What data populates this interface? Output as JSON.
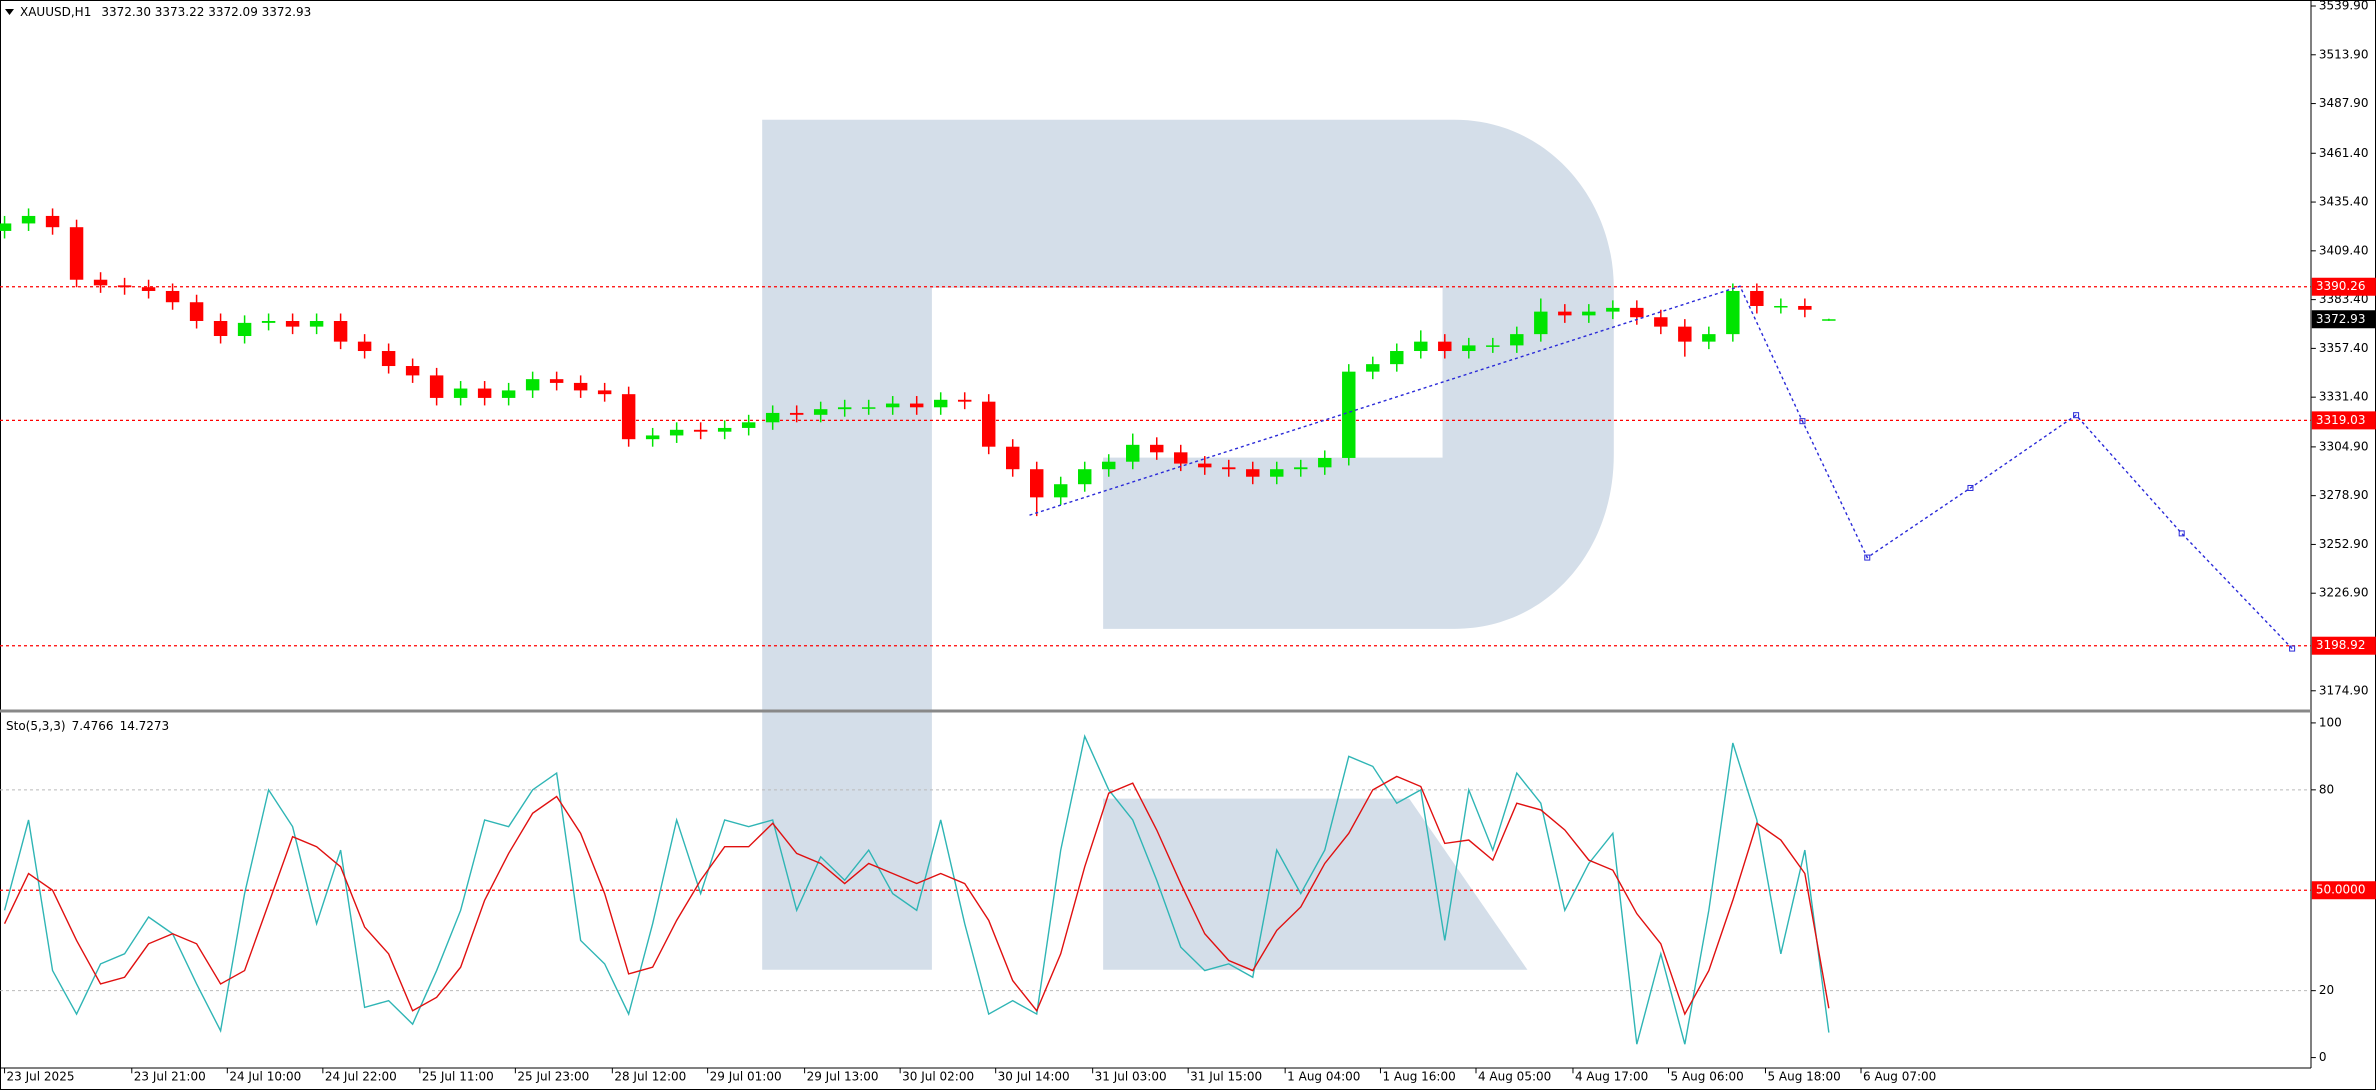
{
  "chart_data": [
    {
      "type": "candlestick",
      "symbol": "XAUUSD,H1",
      "ohlc_text": "3372.30 3373.22 3372.09 3372.93",
      "open": [
        3420,
        3424,
        3428,
        3422,
        3394,
        3391,
        3390,
        3388,
        3382,
        3372,
        3364,
        3371,
        3372,
        3369,
        3372,
        3361,
        3356,
        3348,
        3343,
        3331,
        3336,
        3331,
        3335,
        3341,
        3339,
        3335,
        3333,
        3309,
        3311,
        3314,
        3313,
        3315,
        3318,
        3323,
        3322,
        3325,
        3326,
        3326,
        3328,
        3326,
        3330,
        3329,
        3305,
        3293,
        3278,
        3285,
        3293,
        3297,
        3306,
        3302,
        3296,
        3294,
        3293,
        3289,
        3293,
        3294,
        3299,
        3345,
        3349,
        3356,
        3361,
        3356,
        3359,
        3359,
        3365,
        3377,
        3375,
        3377,
        3379,
        3374,
        3369,
        3361,
        3365,
        3388,
        3380,
        3380,
        3372.3
      ],
      "high": [
        3428,
        3432,
        3432,
        3426,
        3398,
        3395,
        3394,
        3392,
        3386,
        3376,
        3375,
        3376,
        3376,
        3376,
        3376,
        3365,
        3360,
        3352,
        3347,
        3340,
        3340,
        3339,
        3345,
        3345,
        3343,
        3339,
        3337,
        3315,
        3318,
        3318,
        3319,
        3322,
        3327,
        3327,
        3329,
        3330,
        3330,
        3332,
        3332,
        3334,
        3334,
        3333,
        3309,
        3297,
        3289,
        3297,
        3301,
        3312,
        3310,
        3306,
        3300,
        3298,
        3297,
        3297,
        3298,
        3303,
        3349,
        3353,
        3360,
        3367,
        3365,
        3363,
        3363,
        3369,
        3384,
        3381,
        3381,
        3383,
        3383,
        3378,
        3373,
        3369,
        3392,
        3392,
        3384,
        3384,
        3373.22
      ],
      "low": [
        3416,
        3420,
        3418,
        3390,
        3387,
        3386,
        3384,
        3378,
        3368,
        3360,
        3360,
        3367,
        3365,
        3365,
        3357,
        3352,
        3344,
        3339,
        3327,
        3327,
        3327,
        3327,
        3331,
        3335,
        3331,
        3329,
        3305,
        3305,
        3307,
        3309,
        3309,
        3311,
        3314,
        3318,
        3318,
        3321,
        3322,
        3322,
        3322,
        3322,
        3325,
        3301,
        3289,
        3268,
        3274,
        3281,
        3289,
        3293,
        3298,
        3292,
        3290,
        3289,
        3285,
        3285,
        3289,
        3290,
        3295,
        3341,
        3345,
        3352,
        3352,
        3352,
        3355,
        3355,
        3361,
        3371,
        3371,
        3373,
        3370,
        3365,
        3353,
        3357,
        3361,
        3376,
        3376,
        3374,
        3372.09
      ],
      "close": [
        3424,
        3428,
        3422,
        3394,
        3391,
        3390,
        3388,
        3382,
        3372,
        3364,
        3371,
        3372,
        3369,
        3372,
        3361,
        3356,
        3348,
        3343,
        3331,
        3336,
        3331,
        3335,
        3341,
        3339,
        3335,
        3333,
        3309,
        3311,
        3314,
        3313,
        3315,
        3318,
        3323,
        3322,
        3325,
        3326,
        3326,
        3328,
        3326,
        3330,
        3329,
        3305,
        3293,
        3278,
        3285,
        3293,
        3297,
        3306,
        3302,
        3296,
        3294,
        3293,
        3289,
        3293,
        3294,
        3299,
        3345,
        3349,
        3356,
        3361,
        3356,
        3359,
        3359,
        3365,
        3377,
        3375,
        3377,
        3379,
        3374,
        3369,
        3361,
        3365,
        3388,
        3380,
        3380,
        3378,
        3372.93
      ],
      "bull_color": "#00e400",
      "bear_color": "#ff0000",
      "xlim": [
        -0.19,
        96.08
      ],
      "xticks": [
        {
          "value": 0,
          "label": "23 Jul 2025"
        },
        {
          "value": 5.3,
          "label": "23 Jul 21:00"
        },
        {
          "value": 9.28,
          "label": "24 Jul 10:00"
        },
        {
          "value": 13.26,
          "label": "24 Jul 22:00"
        },
        {
          "value": 17.3,
          "label": "25 Jul 11:00"
        },
        {
          "value": 21.28,
          "label": "25 Jul 23:00"
        },
        {
          "value": 25.32,
          "label": "28 Jul 12:00"
        },
        {
          "value": 29.29,
          "label": "29 Jul 01:00"
        },
        {
          "value": 33.33,
          "label": "29 Jul 13:00"
        },
        {
          "value": 37.31,
          "label": "30 Jul 02:00"
        },
        {
          "value": 41.29,
          "label": "30 Jul 14:00"
        },
        {
          "value": 45.33,
          "label": "31 Jul 03:00"
        },
        {
          "value": 49.31,
          "label": "31 Jul 15:00"
        },
        {
          "value": 53.35,
          "label": "1 Aug 04:00"
        },
        {
          "value": 57.32,
          "label": "1 Aug 16:00"
        },
        {
          "value": 61.3,
          "label": "4 Aug 05:00"
        },
        {
          "value": 65.34,
          "label": "4 Aug 17:00"
        },
        {
          "value": 69.32,
          "label": "5 Aug 06:00"
        },
        {
          "value": 73.36,
          "label": "5 Aug 18:00"
        },
        {
          "value": 77.34,
          "label": "6 Aug 07:00"
        }
      ],
      "ylim": [
        3165.1,
        3543.1
      ],
      "yticks": [
        {
          "value": 3539.9,
          "label": "3539.90"
        },
        {
          "value": 3513.9,
          "label": "3513.90"
        },
        {
          "value": 3487.9,
          "label": "3487.90"
        },
        {
          "value": 3461.4,
          "label": "3461.40"
        },
        {
          "value": 3435.4,
          "label": "3435.40"
        },
        {
          "value": 3409.4,
          "label": "3409.40"
        },
        {
          "value": 3383.4,
          "label": "3383.40"
        },
        {
          "value": 3357.4,
          "label": "3357.40"
        },
        {
          "value": 3331.4,
          "label": "3331.40"
        },
        {
          "value": 3304.9,
          "label": "3304.90"
        },
        {
          "value": 3278.9,
          "label": "3278.90"
        },
        {
          "value": 3252.9,
          "label": "3252.90"
        },
        {
          "value": 3226.9,
          "label": "3226.90"
        },
        {
          "value": 3174.9,
          "label": "3174.90"
        }
      ],
      "levels": [
        3390.26,
        3319.03,
        3198.92
      ],
      "level_color": "#ff0000",
      "last_price": 3372.93,
      "forecast": {
        "color": "#2a2ad8",
        "x": [
          42.7,
          72.3,
          74.9,
          77.6,
          81.9,
          86.3,
          90.7,
          95.3
        ],
        "values": [
          3268.5,
          3390.5,
          3318.6,
          3245.9,
          3283.0,
          3321.8,
          3258.8,
          3197.4
        ]
      }
    },
    {
      "type": "line",
      "title": "Sto(5,3,3)",
      "ylim": [
        -3.2,
        103.2
      ],
      "yticks": [
        0,
        20,
        80,
        100
      ],
      "levels": [
        20,
        80
      ],
      "signal_level": {
        "value": 50,
        "label": "50.0000"
      },
      "signal_color": "#ff0000",
      "series": [
        {
          "color": "#2fb5b5",
          "values": [
            44,
            71,
            26,
            13,
            28,
            31,
            42,
            37,
            22,
            8,
            49,
            80,
            69,
            40,
            62,
            15,
            17,
            10,
            26,
            44,
            71,
            69,
            80,
            85,
            35,
            28,
            13,
            40,
            71,
            49,
            71,
            69,
            71,
            44,
            60,
            53,
            62,
            49,
            44,
            71,
            40,
            13,
            17,
            13,
            62,
            96,
            80,
            71,
            53,
            33,
            26,
            28,
            24,
            62,
            49,
            62,
            90,
            87,
            76,
            80,
            35,
            80,
            62,
            85,
            76,
            44,
            58,
            67,
            4,
            31,
            4,
            44,
            94,
            71,
            31,
            62,
            7.4766
          ]
        },
        {
          "color": "#e01010",
          "values": [
            40,
            55,
            50,
            35,
            22,
            24,
            34,
            37,
            34,
            22,
            26,
            46,
            66,
            63,
            57,
            39,
            31,
            14,
            18,
            27,
            47,
            61,
            73,
            78,
            67,
            49,
            25,
            27,
            41,
            53,
            63,
            63,
            70,
            61,
            58,
            52,
            58,
            55,
            52,
            55,
            52,
            41,
            23,
            14,
            31,
            57,
            79,
            82,
            68,
            52,
            37,
            29,
            26,
            38,
            45,
            58,
            67,
            80,
            84,
            81,
            64,
            65,
            59,
            76,
            74,
            68,
            59,
            56,
            43,
            34,
            13,
            26,
            47,
            70,
            65,
            55,
            14.7273
          ]
        }
      ]
    }
  ]
}
